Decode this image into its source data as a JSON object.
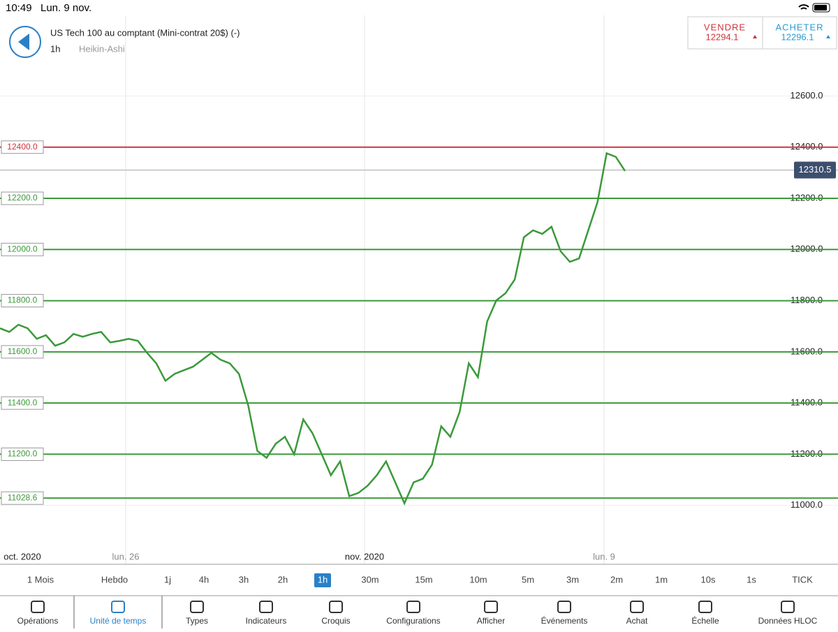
{
  "status_bar": {
    "time": "10:49",
    "date": "Lun. 9 nov."
  },
  "header": {
    "title": "US Tech 100 au comptant (Mini-contrat 20$) (-)",
    "timeframe": "1h",
    "chart_style": "Heikin-Ashi"
  },
  "quote": {
    "sell_label": "VENDRE",
    "sell_price": 12294.1,
    "buy_label": "ACHETER",
    "buy_price": 12296.1
  },
  "chart_data": {
    "type": "line",
    "color": "#3a9a3a",
    "values": [
      11692,
      11678,
      11706,
      11692,
      11651,
      11665,
      11624,
      11637,
      11670,
      11659,
      11670,
      11678,
      11637,
      11643,
      11651,
      11643,
      11596,
      11555,
      11487,
      11514,
      11528,
      11542,
      11569,
      11596,
      11569,
      11555,
      11514,
      11391,
      11213,
      11186,
      11241,
      11268,
      11200,
      11336,
      11282,
      11200,
      11118,
      11172,
      11036,
      11049,
      11077,
      11118,
      11172,
      11090,
      11008,
      11090,
      11104,
      11159,
      11309,
      11268,
      11364,
      11555,
      11501,
      11719,
      11801,
      11829,
      11883,
      12048,
      12075,
      12061,
      12089,
      11993,
      11952,
      11965,
      12075,
      12184,
      12376,
      12362,
      12307
    ],
    "ylim": [
      10770,
      12915
    ],
    "yticks": [
      {
        "value": 11000,
        "label": "11000.0"
      },
      {
        "value": 11200,
        "label": "11200.0"
      },
      {
        "value": 11400,
        "label": "11400.0"
      },
      {
        "value": 11600,
        "label": "11600.0"
      },
      {
        "value": 11800,
        "label": "11800.0"
      },
      {
        "value": 12000,
        "label": "12000.0"
      },
      {
        "value": 12200,
        "label": "12200.0"
      },
      {
        "value": 12400,
        "label": "12400.0"
      },
      {
        "value": 12600,
        "label": "12600.0"
      }
    ],
    "x_labels": [
      "oct. 2020",
      "lun. 26",
      "nov. 2020",
      "lun. 9"
    ],
    "levels": [
      {
        "value": 12400,
        "label": "12400.0",
        "color": "#d0333b"
      },
      {
        "value": 12200,
        "label": "12200.0",
        "color": "#3a9a3a"
      },
      {
        "value": 12000,
        "label": "12000.0",
        "color": "#3a9a3a"
      },
      {
        "value": 11800,
        "label": "11800.0",
        "color": "#3a9a3a"
      },
      {
        "value": 11600,
        "label": "11600.0",
        "color": "#3a9a3a"
      },
      {
        "value": 11400,
        "label": "11400.0",
        "color": "#3a9a3a"
      },
      {
        "value": 11200,
        "label": "11200.0",
        "color": "#3a9a3a"
      },
      {
        "value": 11028.6,
        "label": "11028.6",
        "color": "#3a9a3a"
      }
    ],
    "last_price": 12310.5
  },
  "timeframes": {
    "items": [
      "1 Mois",
      "Hebdo",
      "1j",
      "4h",
      "3h",
      "2h",
      "1h",
      "30m",
      "15m",
      "10m",
      "5m",
      "3m",
      "2m",
      "1m",
      "10s",
      "1s",
      "TICK"
    ],
    "selected": 6
  },
  "toolbar": {
    "items": [
      "Opérations",
      "Unité de temps",
      "Types",
      "Indicateurs",
      "Croquis",
      "Configurations",
      "Afficher",
      "Événements",
      "Achat",
      "Échelle",
      "Données HLOC"
    ],
    "selected": 1
  }
}
